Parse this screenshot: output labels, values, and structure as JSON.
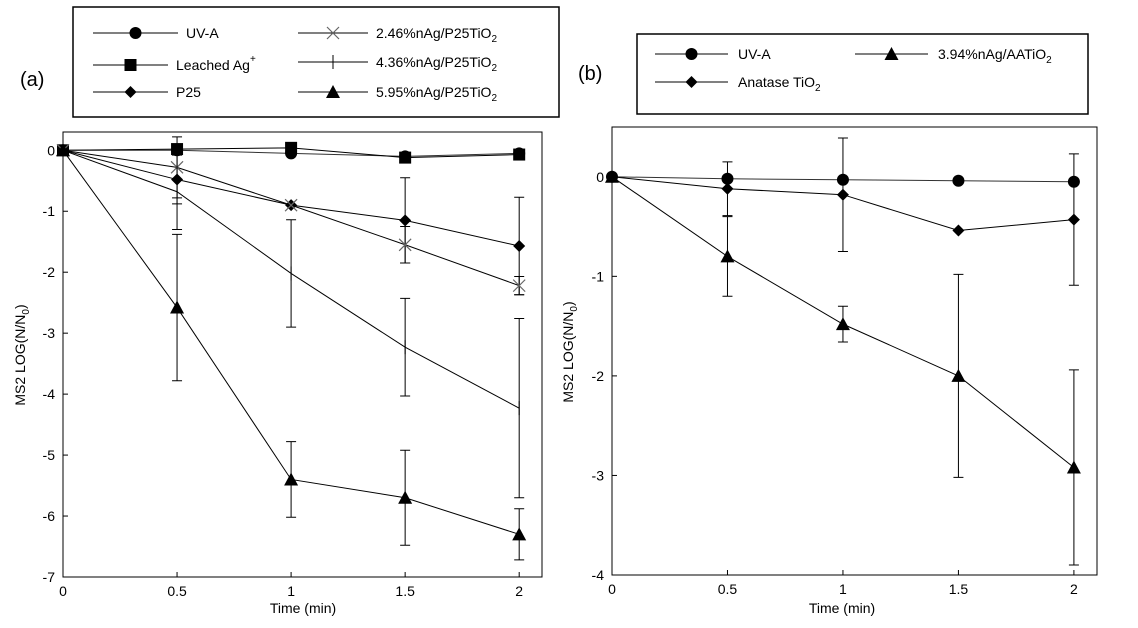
{
  "chart_data": [
    {
      "panel_label": "(a)",
      "type": "line",
      "xlabel": "Time (min)",
      "ylabel": "MS2 LOG(N/N₀)",
      "xlim": [
        0,
        2.1
      ],
      "ylim": [
        -7,
        0.3
      ],
      "xticks": [
        0,
        0.5,
        1,
        1.5,
        2
      ],
      "xtick_labels": [
        "0",
        "0.5",
        "1",
        "1.5",
        "2"
      ],
      "yticks": [
        0,
        -1,
        -2,
        -3,
        -4,
        -5,
        -6,
        -7
      ],
      "ytick_labels": [
        "0",
        "-1",
        "-2",
        "-3",
        "-4",
        "-5",
        "-6",
        "-7"
      ],
      "x": [
        0,
        0.5,
        1,
        1.5,
        2
      ],
      "series": [
        {
          "name": "UV-A",
          "label_main": "UV-A",
          "label_sub": "",
          "label_sup": "",
          "marker": "circle",
          "values": [
            0,
            0,
            -0.05,
            -0.1,
            -0.05
          ],
          "errors": [
            0,
            0,
            0,
            0,
            0
          ]
        },
        {
          "name": "Leached Ag⁺",
          "label_main": "Leached Ag",
          "label_sub": "",
          "label_sup": "+",
          "marker": "square",
          "values": [
            0,
            0.02,
            0.04,
            -0.12,
            -0.07
          ],
          "errors": [
            0,
            0,
            0,
            0,
            0
          ]
        },
        {
          "name": "P25",
          "label_main": "P25",
          "label_sub": "",
          "label_sup": "",
          "marker": "diamond",
          "values": [
            0,
            -0.48,
            -0.9,
            -1.15,
            -1.57
          ],
          "errors": [
            0,
            0.4,
            0,
            0.7,
            0.8
          ]
        },
        {
          "name": "2.46%nAg/P25TiO₂",
          "label_main": "2.46%nAg/P25TiO",
          "label_sub": "2",
          "label_sup": "",
          "marker": "x",
          "values": [
            0,
            -0.28,
            -0.9,
            -1.55,
            -2.22
          ],
          "errors": [
            0,
            0.5,
            0,
            0.3,
            0.15
          ]
        },
        {
          "name": "4.36%nAg/P25TiO₂",
          "label_main": "4.36%nAg/P25TiO",
          "label_sub": "2",
          "label_sup": "",
          "marker": "plus",
          "values": [
            0,
            -0.68,
            -2.02,
            -3.23,
            -4.23
          ],
          "errors": [
            0,
            0.62,
            0.88,
            0.8,
            1.47
          ]
        },
        {
          "name": "5.95%nAg/P25TiO₂",
          "label_main": "5.95%nAg/P25TiO",
          "label_sub": "2",
          "label_sup": "",
          "marker": "triangle",
          "values": [
            0,
            -2.58,
            -5.4,
            -5.7,
            -6.3
          ],
          "errors": [
            0,
            1.2,
            0.62,
            0.78,
            0.42
          ]
        }
      ]
    },
    {
      "panel_label": "(b)",
      "type": "line",
      "xlabel": "Time (min)",
      "ylabel": "MS2 LOG(N/N₀)",
      "xlim": [
        0,
        2.1
      ],
      "ylim": [
        -4,
        0.5
      ],
      "xticks": [
        0,
        0.5,
        1,
        1.5,
        2
      ],
      "xtick_labels": [
        "0",
        "0.5",
        "1",
        "1.5",
        "2"
      ],
      "yticks": [
        0,
        -1,
        -2,
        -3,
        -4
      ],
      "ytick_labels": [
        "0",
        "-1",
        "-2",
        "-3",
        "-4"
      ],
      "x": [
        0,
        0.5,
        1,
        1.5,
        2
      ],
      "series": [
        {
          "name": "UV-A",
          "label_main": "UV-A",
          "label_sub": "",
          "label_sup": "",
          "marker": "circle",
          "values": [
            0,
            -0.02,
            -0.03,
            -0.04,
            -0.05
          ],
          "errors": [
            0,
            0,
            0,
            0,
            0
          ]
        },
        {
          "name": "Anatase TiO₂",
          "label_main": "Anatase TiO",
          "label_sub": "2",
          "label_sup": "",
          "marker": "diamond",
          "values": [
            0,
            -0.12,
            -0.18,
            -0.54,
            -0.43
          ],
          "errors": [
            0,
            0.27,
            0.57,
            0,
            0.66
          ]
        },
        {
          "name": "3.94%nAg/AATiO₂",
          "label_main": "3.94%nAg/AATiO",
          "label_sub": "2",
          "label_sup": "",
          "marker": "triangle",
          "values": [
            0,
            -0.8,
            -1.48,
            -2.0,
            -2.92
          ],
          "errors": [
            0,
            0.4,
            0.18,
            1.02,
            0.98
          ]
        }
      ]
    }
  ]
}
